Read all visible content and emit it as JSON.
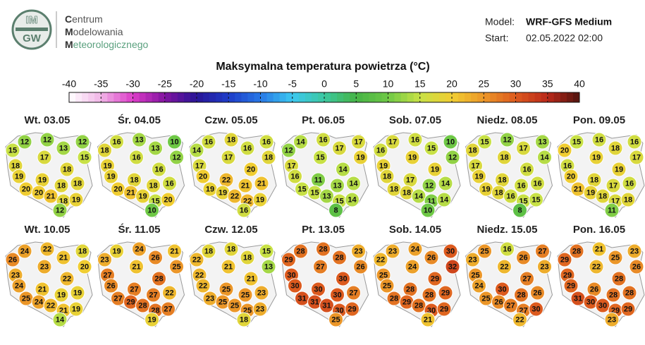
{
  "header": {
    "logo": {
      "top": "IM",
      "bottom": "GW"
    },
    "org": [
      {
        "initial": "C",
        "rest": "entrum"
      },
      {
        "initial": "M",
        "rest": "odelowania"
      },
      {
        "initial": "M",
        "rest": "eteorologicznego"
      }
    ],
    "model": {
      "label": "Model:",
      "value": "WRF-GFS Medium"
    },
    "start": {
      "label": "Start:",
      "value": "02.05.2022 02:00"
    }
  },
  "title": "Maksymalna temperatura powietrza (°C)",
  "colorbar": {
    "ticks": [
      -40,
      -35,
      -30,
      -25,
      -20,
      -15,
      -10,
      -5,
      0,
      5,
      10,
      15,
      20,
      25,
      30,
      35,
      40
    ]
  },
  "maps": [
    {
      "date": "Wt. 03.05",
      "values": [
        12,
        12,
        12,
        15,
        13,
        15,
        17,
        18,
        18,
        19,
        19,
        18,
        18,
        20,
        20,
        21,
        18,
        19,
        12
      ]
    },
    {
      "date": "Śr. 04.05",
      "values": [
        16,
        13,
        10,
        18,
        13,
        12,
        16,
        19,
        16,
        19,
        18,
        18,
        16,
        20,
        21,
        19,
        15,
        20,
        10
      ]
    },
    {
      "date": "Czw. 05.05",
      "values": [
        16,
        18,
        16,
        14,
        16,
        18,
        17,
        17,
        20,
        20,
        22,
        21,
        21,
        19,
        19,
        22,
        22,
        19,
        16
      ]
    },
    {
      "date": "Pt. 06.05",
      "values": [
        14,
        16,
        17,
        12,
        17,
        19,
        15,
        17,
        14,
        16,
        11,
        13,
        14,
        15,
        15,
        13,
        15,
        14,
        8
      ]
    },
    {
      "date": "Sob. 07.05",
      "values": [
        17,
        16,
        10,
        16,
        15,
        12,
        19,
        19,
        19,
        18,
        17,
        12,
        14,
        18,
        18,
        14,
        11,
        14,
        10
      ]
    },
    {
      "date": "Niedz. 08.05",
      "values": [
        15,
        12,
        13,
        18,
        17,
        14,
        18,
        17,
        16,
        19,
        18,
        16,
        16,
        19,
        18,
        16,
        15,
        15,
        8
      ]
    },
    {
      "date": "Pon. 09.05",
      "values": [
        15,
        16,
        16,
        20,
        18,
        17,
        19,
        16,
        19,
        20,
        18,
        17,
        16,
        21,
        19,
        18,
        17,
        18,
        11
      ]
    },
    {
      "date": "Wt. 10.05",
      "values": [
        24,
        22,
        18,
        26,
        21,
        20,
        23,
        23,
        22,
        24,
        21,
        19,
        19,
        25,
        24,
        22,
        21,
        19,
        14
      ]
    },
    {
      "date": "Śr. 11.05",
      "values": [
        19,
        24,
        21,
        23,
        26,
        25,
        21,
        27,
        28,
        26,
        27,
        27,
        22,
        27,
        29,
        28,
        28,
        27,
        19
      ]
    },
    {
      "date": "Czw. 12.05",
      "values": [
        18,
        18,
        15,
        22,
        18,
        13,
        21,
        22,
        21,
        22,
        25,
        25,
        23,
        23,
        25,
        25,
        25,
        23,
        18
      ]
    },
    {
      "date": "Pt. 13.05",
      "values": [
        28,
        28,
        23,
        29,
        28,
        26,
        27,
        30,
        30,
        30,
        30,
        30,
        27,
        31,
        31,
        31,
        30,
        29,
        25
      ]
    },
    {
      "date": "Sob. 14.05",
      "values": [
        23,
        24,
        30,
        22,
        26,
        32,
        24,
        25,
        29,
        25,
        28,
        28,
        29,
        28,
        29,
        28,
        30,
        29,
        21
      ]
    },
    {
      "date": "Niedz. 15.05",
      "values": [
        25,
        16,
        27,
        23,
        26,
        23,
        22,
        25,
        27,
        24,
        30,
        28,
        26,
        25,
        26,
        27,
        27,
        30,
        22
      ]
    },
    {
      "date": "Pon. 16.05",
      "values": [
        28,
        21,
        23,
        29,
        25,
        26,
        22,
        29,
        28,
        29,
        26,
        28,
        28,
        31,
        30,
        30,
        29,
        29,
        23
      ]
    }
  ]
}
